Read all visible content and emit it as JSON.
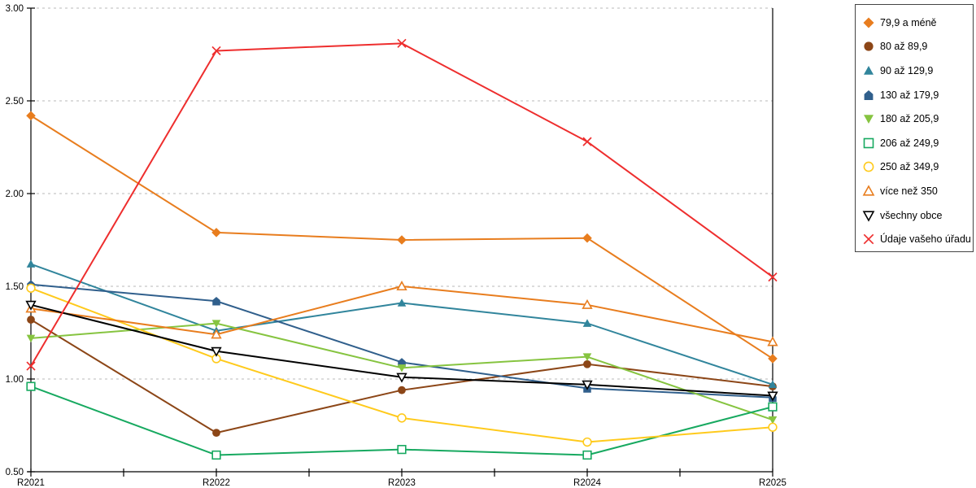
{
  "chart_data": {
    "type": "line",
    "title": "",
    "xlabel": "",
    "ylabel": "",
    "categories": [
      "R2021",
      "R2022",
      "R2023",
      "R2024",
      "R2025"
    ],
    "series": [
      {
        "name": "79,9 a méně",
        "color": "#e87d1e",
        "marker": "diamond",
        "fill": "solid",
        "values": [
          2.42,
          1.79,
          1.75,
          1.76,
          1.11
        ]
      },
      {
        "name": "80 až 89,9",
        "color": "#8c4617",
        "marker": "circle",
        "fill": "solid",
        "values": [
          1.32,
          0.71,
          0.94,
          1.08,
          0.96
        ]
      },
      {
        "name": "90 až 129,9",
        "color": "#31859c",
        "marker": "triangle-up",
        "fill": "solid",
        "values": [
          1.62,
          1.26,
          1.41,
          1.3,
          0.97
        ]
      },
      {
        "name": "130 až 179,9",
        "color": "#305f8c",
        "marker": "pentagon",
        "fill": "solid",
        "values": [
          1.51,
          1.42,
          1.09,
          0.95,
          0.9
        ]
      },
      {
        "name": "180 až 205,9",
        "color": "#86c440",
        "marker": "triangle-down",
        "fill": "solid",
        "values": [
          1.22,
          1.3,
          1.06,
          1.12,
          0.78
        ]
      },
      {
        "name": "206 až 249,9",
        "color": "#17a960",
        "marker": "square",
        "fill": "open",
        "values": [
          0.96,
          0.59,
          0.62,
          0.59,
          0.85
        ]
      },
      {
        "name": "250 až 349,9",
        "color": "#ffca1c",
        "marker": "circle",
        "fill": "open",
        "values": [
          1.49,
          1.11,
          0.79,
          0.66,
          0.74
        ]
      },
      {
        "name": "více než 350",
        "color": "#e87d1e",
        "marker": "triangle-up",
        "fill": "open",
        "values": [
          1.38,
          1.24,
          1.5,
          1.4,
          1.2
        ]
      },
      {
        "name": "všechny obce",
        "color": "#000000",
        "marker": "triangle-down",
        "fill": "open",
        "values": [
          1.4,
          1.15,
          1.01,
          0.97,
          0.91
        ]
      },
      {
        "name": "Údaje vašeho úřadu",
        "color": "#ee2e2e",
        "marker": "x",
        "fill": "open",
        "values": [
          1.07,
          2.77,
          2.81,
          2.28,
          1.55
        ]
      }
    ],
    "ylim": [
      0.5,
      3.0
    ],
    "ytick_step": 0.5,
    "ytick_labels": [
      "0.50",
      "1.00",
      "1.50",
      "2.00",
      "2.50",
      "3.00"
    ],
    "grid": "horizontal-dashed",
    "grid_color": "#b8b8b8",
    "axis_color": "#000000",
    "legend_position": "right"
  }
}
